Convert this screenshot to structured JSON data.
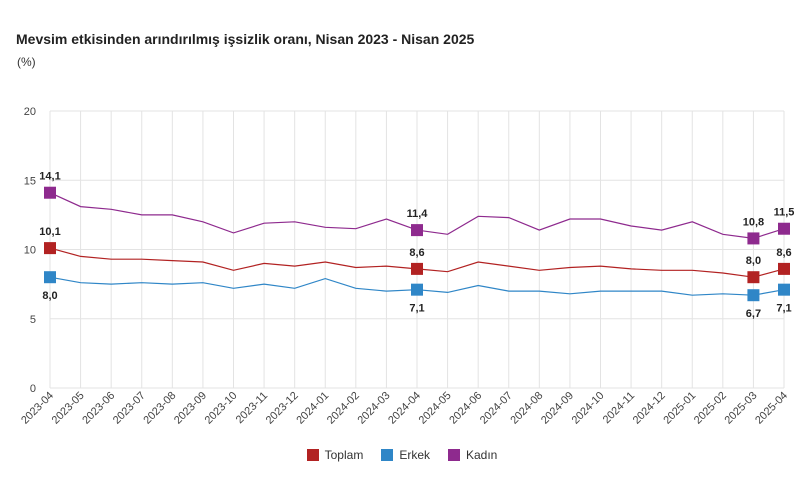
{
  "chart_data": {
    "type": "line",
    "title": "Mevsim etkisinden arındırılmış işsizlik oranı, Nisan 2023 - Nisan 2025",
    "ylabel": "(%)",
    "xlabel": "",
    "ylim": [
      0,
      20
    ],
    "yticks": [
      "0",
      "5",
      "10",
      "15",
      "20"
    ],
    "grid": true,
    "legend_position": "bottom",
    "categories": [
      "2023-04",
      "2023-05",
      "2023-06",
      "2023-07",
      "2023-08",
      "2023-09",
      "2023-10",
      "2023-11",
      "2023-12",
      "2024-01",
      "2024-02",
      "2024-03",
      "2024-04",
      "2024-05",
      "2024-06",
      "2024-07",
      "2024-08",
      "2024-09",
      "2024-10",
      "2024-11",
      "2024-12",
      "2025-01",
      "2025-02",
      "2025-03",
      "2025-04"
    ],
    "series": [
      {
        "name": "Toplam",
        "color": "#b22222",
        "values": [
          10.1,
          9.5,
          9.3,
          9.3,
          9.2,
          9.1,
          8.5,
          9.0,
          8.8,
          9.1,
          8.7,
          8.8,
          8.6,
          8.4,
          9.1,
          8.8,
          8.5,
          8.7,
          8.8,
          8.6,
          8.5,
          8.5,
          8.3,
          8.0,
          8.6
        ]
      },
      {
        "name": "Erkek",
        "color": "#2f86c7",
        "values": [
          8.0,
          7.6,
          7.5,
          7.6,
          7.5,
          7.6,
          7.2,
          7.5,
          7.2,
          7.9,
          7.2,
          7.0,
          7.1,
          6.9,
          7.4,
          7.0,
          7.0,
          6.8,
          7.0,
          7.0,
          7.0,
          6.7,
          6.8,
          6.7,
          7.1
        ]
      },
      {
        "name": "Kadın",
        "color": "#8e2a8e",
        "values": [
          14.1,
          13.1,
          12.9,
          12.5,
          12.5,
          12.0,
          11.2,
          11.9,
          12.0,
          11.6,
          11.5,
          12.2,
          11.4,
          11.1,
          12.4,
          12.3,
          11.4,
          12.2,
          12.2,
          11.7,
          11.4,
          12.0,
          11.1,
          10.8,
          11.5
        ]
      }
    ],
    "data_labels": [
      {
        "series": 0,
        "index": 0,
        "text": "10,1",
        "pos": "above"
      },
      {
        "series": 0,
        "index": 12,
        "text": "8,6",
        "pos": "above"
      },
      {
        "series": 0,
        "index": 23,
        "text": "8,0",
        "pos": "above"
      },
      {
        "series": 0,
        "index": 24,
        "text": "8,6",
        "pos": "above"
      },
      {
        "series": 1,
        "index": 0,
        "text": "8,0",
        "pos": "below"
      },
      {
        "series": 1,
        "index": 12,
        "text": "7,1",
        "pos": "below"
      },
      {
        "series": 1,
        "index": 23,
        "text": "6,7",
        "pos": "below"
      },
      {
        "series": 1,
        "index": 24,
        "text": "7,1",
        "pos": "below"
      },
      {
        "series": 2,
        "index": 0,
        "text": "14,1",
        "pos": "above"
      },
      {
        "series": 2,
        "index": 12,
        "text": "11,4",
        "pos": "above"
      },
      {
        "series": 2,
        "index": 23,
        "text": "10,8",
        "pos": "above"
      },
      {
        "series": 2,
        "index": 24,
        "text": "11,5",
        "pos": "above"
      }
    ],
    "marker_indices": [
      0,
      12,
      23,
      24
    ]
  }
}
